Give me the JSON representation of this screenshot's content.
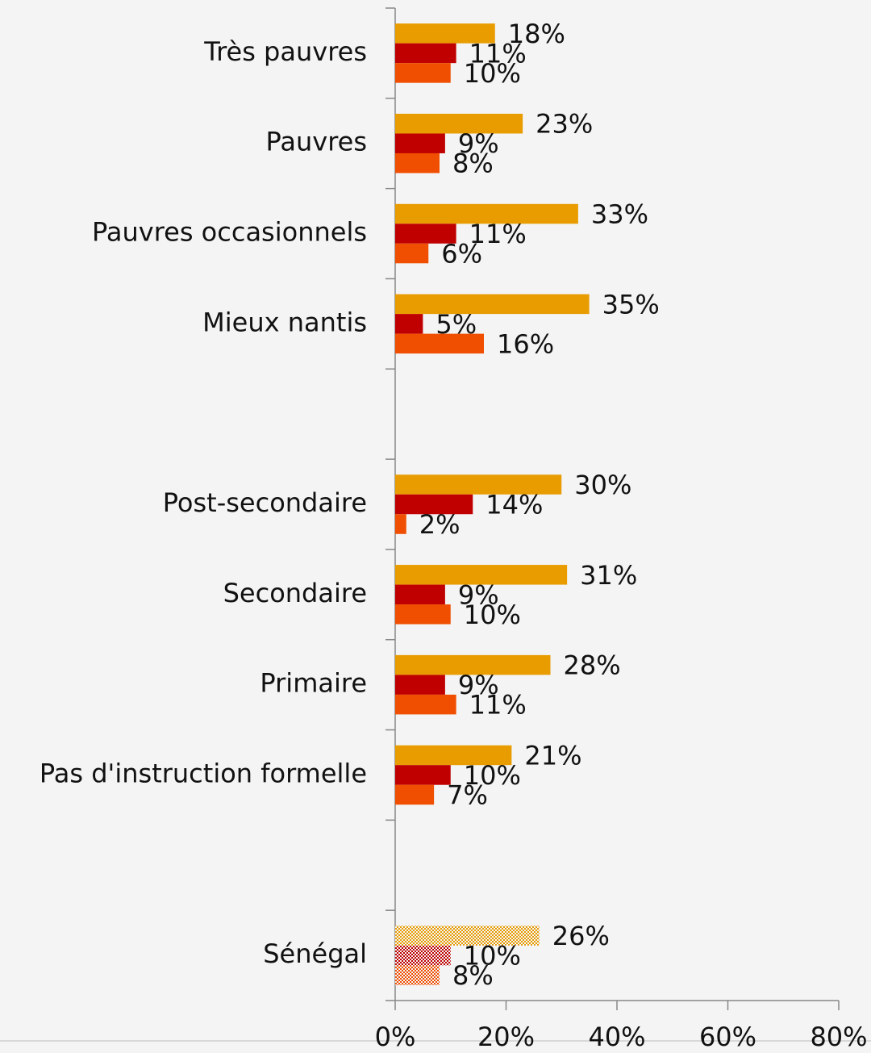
{
  "chart_data": {
    "type": "hbar",
    "categories": [
      "Très pauvres",
      "Pauvres",
      "Pauvres occasionnels",
      "Mieux nantis",
      null,
      "Post-secondaire",
      "Secondaire",
      "Primaire",
      "Pas d'instruction formelle",
      null,
      "Sénégal"
    ],
    "hatched_category": "Sénégal",
    "series": [
      {
        "color": "#e89c00",
        "values": [
          18,
          23,
          33,
          35,
          null,
          30,
          31,
          28,
          21,
          null,
          26
        ],
        "value_labels": [
          "18%",
          "23%",
          "33%",
          "35%",
          null,
          "30%",
          "31%",
          "28%",
          "21%",
          null,
          "26%"
        ]
      },
      {
        "color": "#c00000",
        "values": [
          11,
          9,
          11,
          5,
          null,
          14,
          9,
          9,
          10,
          null,
          10
        ],
        "value_labels": [
          "11%",
          "9%",
          "11%",
          "5%",
          null,
          "14%",
          "9%",
          "9%",
          "10%",
          null,
          "10%"
        ]
      },
      {
        "color": "#f04e00",
        "values": [
          10,
          8,
          6,
          16,
          null,
          2,
          10,
          11,
          7,
          null,
          8
        ],
        "value_labels": [
          "10%",
          "8%",
          "6%",
          "16%",
          null,
          "2%",
          "10%",
          "11%",
          "7%",
          null,
          "8%"
        ]
      }
    ],
    "xlim": [
      0,
      80
    ],
    "xticks": [
      {
        "value": 0,
        "label": "0%"
      },
      {
        "value": 20,
        "label": "20%"
      },
      {
        "value": 40,
        "label": "40%"
      },
      {
        "value": 60,
        "label": "60%"
      },
      {
        "value": 80,
        "label": "80%"
      }
    ]
  }
}
